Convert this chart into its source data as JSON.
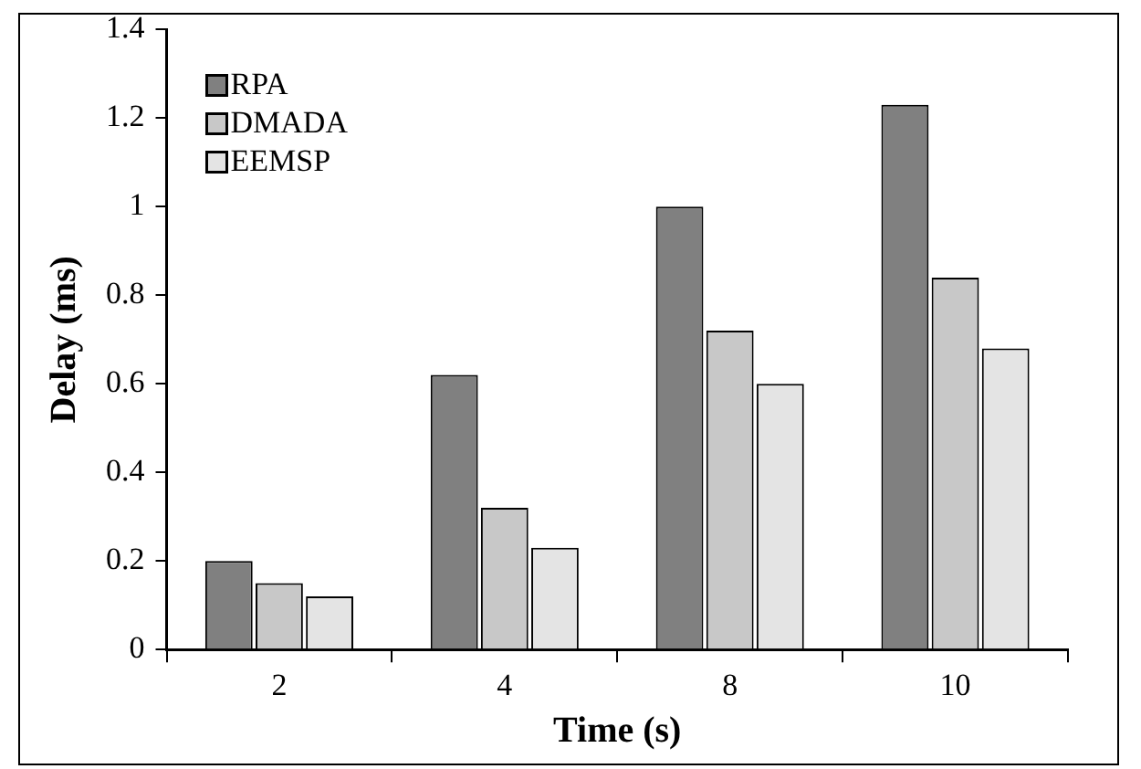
{
  "chart_data": {
    "type": "bar",
    "xlabel": "Time (s)",
    "ylabel": "Delay (ms)",
    "categories": [
      "2",
      "4",
      "8",
      "10"
    ],
    "series": [
      {
        "name": "RPA",
        "color": "#808080",
        "values": [
          0.2,
          0.62,
          1.0,
          1.23
        ]
      },
      {
        "name": "DMADA",
        "color": "#c8c8c8",
        "values": [
          0.15,
          0.32,
          0.72,
          0.84
        ]
      },
      {
        "name": "EEMSP",
        "color": "#e4e4e4",
        "values": [
          0.12,
          0.23,
          0.6,
          0.68
        ]
      }
    ],
    "ylim": [
      0,
      1.4
    ],
    "yticks": [
      0,
      0.2,
      0.4,
      0.6,
      0.8,
      1,
      1.2,
      1.4
    ],
    "grid": false,
    "legend": "top left"
  }
}
